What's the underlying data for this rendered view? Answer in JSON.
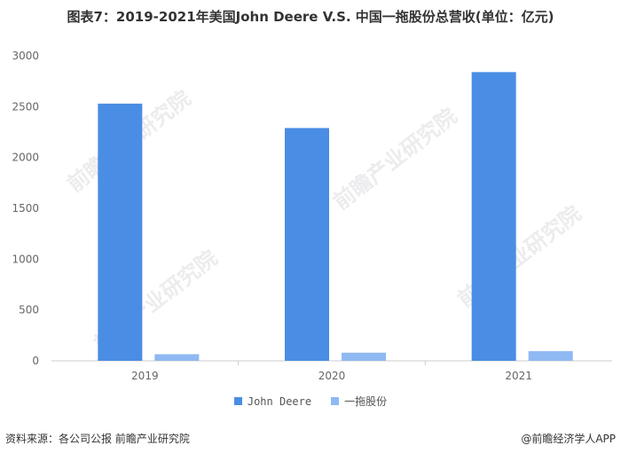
{
  "title": "图表7：2019-2021年美国John Deere V.S. 中国一拖股份总营收(单位：亿元)",
  "colors": {
    "john_deere": "#4a8de4",
    "yituo": "#8fb9f2",
    "axis": "#cccccc"
  },
  "chart_data": {
    "type": "bar",
    "title": "图表7：2019-2021年美国John Deere V.S. 中国一拖股份总营收(单位：亿元)",
    "categories": [
      "2019",
      "2020",
      "2021"
    ],
    "series": [
      {
        "name": "John Deere",
        "values": [
          2530,
          2290,
          2840
        ]
      },
      {
        "name": "一拖股份",
        "values": [
          65,
          80,
          95
        ]
      }
    ],
    "ylim": [
      0,
      3000
    ],
    "yticks": [
      "0",
      "500",
      "1000",
      "1500",
      "2000",
      "2500",
      "3000"
    ],
    "grid": false,
    "legend_position": "bottom"
  },
  "footer": {
    "source": "资料来源：各公司公报 前瞻产业研究院",
    "credit": "@前瞻经济学人APP"
  },
  "watermark_text": "前瞻产业研究院"
}
